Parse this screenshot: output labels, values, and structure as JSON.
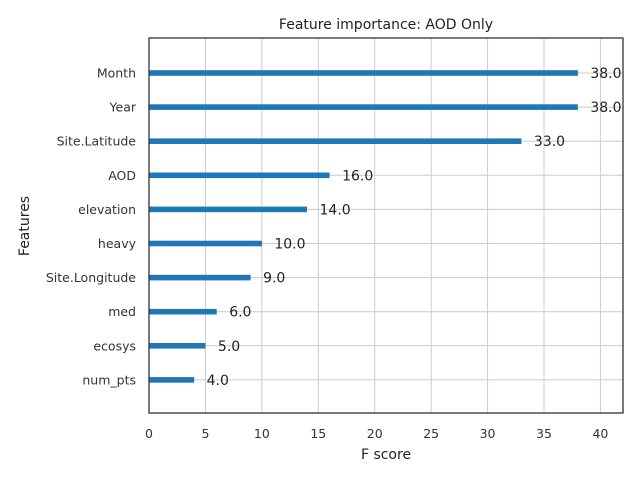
{
  "chart_data": {
    "type": "bar",
    "orientation": "horizontal",
    "title": "Feature importance: AOD Only",
    "xlabel": "F score",
    "ylabel": "Features",
    "categories": [
      "Month",
      "Year",
      "Site.Latitude",
      "AOD",
      "elevation",
      "heavy",
      "Site.Longitude",
      "med",
      "ecosys",
      "num_pts"
    ],
    "values": [
      38.0,
      38.0,
      33.0,
      16.0,
      14.0,
      10.0,
      9.0,
      6.0,
      5.0,
      4.0
    ],
    "data_labels": [
      "38.0",
      "38.0",
      "33.0",
      "16.0",
      "14.0",
      "10.0",
      "9.0",
      "6.0",
      "5.0",
      "4.0"
    ],
    "xlim": [
      0,
      42
    ],
    "xticks": [
      0,
      5,
      10,
      15,
      20,
      25,
      30,
      35,
      40
    ],
    "grid": true,
    "bar_color": "#1f77b4"
  }
}
